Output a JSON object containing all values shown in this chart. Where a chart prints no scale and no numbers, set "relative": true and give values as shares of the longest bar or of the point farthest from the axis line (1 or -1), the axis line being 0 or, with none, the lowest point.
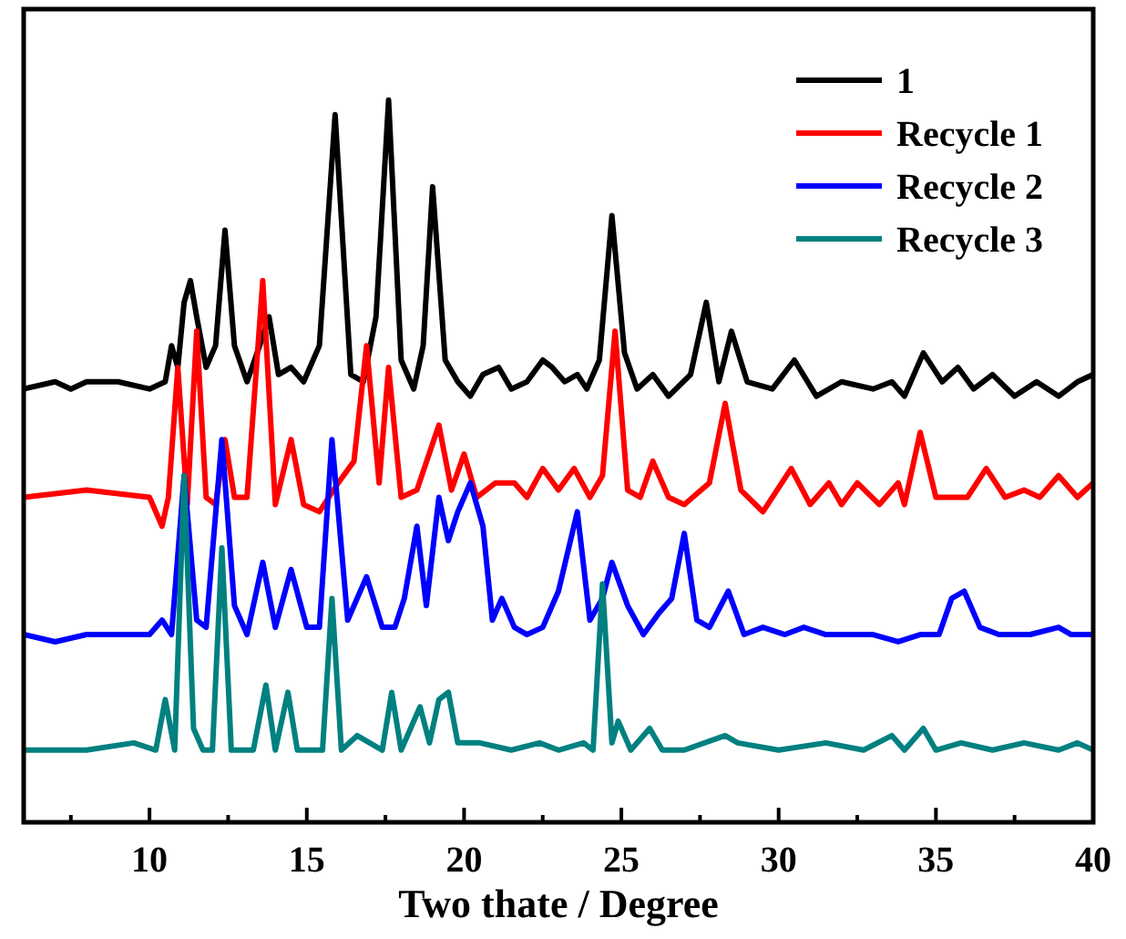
{
  "chart_data": {
    "type": "line",
    "relative": true,
    "xlabel": "Two thate / Degree",
    "xlim": [
      6,
      40
    ],
    "xticks": [
      {
        "value": 7.5,
        "label": null
      },
      10,
      {
        "value": 12.5,
        "label": null
      },
      15,
      {
        "value": 17.5,
        "label": null
      },
      20,
      {
        "value": 22.5,
        "label": null
      },
      25,
      {
        "value": 27.5,
        "label": null
      },
      30,
      {
        "value": 32.5,
        "label": null
      },
      35,
      {
        "value": 37.5,
        "label": null
      },
      40
    ],
    "tick_labels": "x",
    "legend": "top right",
    "line_style": "solid",
    "series": [
      {
        "name": "1",
        "color": "#000000",
        "x": [
          6,
          7,
          7.5,
          8,
          9,
          10,
          10.5,
          10.7,
          10.9,
          11.1,
          11.3,
          11.5,
          11.8,
          12.1,
          12.4,
          12.7,
          13.1,
          13.5,
          13.8,
          14.1,
          14.5,
          14.9,
          15.4,
          15.9,
          16.4,
          16.8,
          17.2,
          17.6,
          18.0,
          18.4,
          18.7,
          19.0,
          19.4,
          19.8,
          20.2,
          20.6,
          21.1,
          21.5,
          22.0,
          22.5,
          22.8,
          23.2,
          23.6,
          23.9,
          24.3,
          24.7,
          25.1,
          25.5,
          26.0,
          26.5,
          27.2,
          27.7,
          28.1,
          28.5,
          29.0,
          29.8,
          30.5,
          31.2,
          32.0,
          33.0,
          33.6,
          34.0,
          34.6,
          35.2,
          35.7,
          36.2,
          36.8,
          37.5,
          38.2,
          38.9,
          39.5,
          40
        ],
        "values": [
          0.6,
          0.61,
          0.6,
          0.61,
          0.61,
          0.6,
          0.61,
          0.66,
          0.63,
          0.72,
          0.75,
          0.7,
          0.63,
          0.66,
          0.82,
          0.66,
          0.61,
          0.66,
          0.7,
          0.62,
          0.63,
          0.61,
          0.66,
          0.98,
          0.62,
          0.61,
          0.7,
          1.0,
          0.64,
          0.6,
          0.66,
          0.88,
          0.64,
          0.61,
          0.59,
          0.62,
          0.63,
          0.6,
          0.61,
          0.64,
          0.63,
          0.61,
          0.62,
          0.6,
          0.64,
          0.84,
          0.65,
          0.6,
          0.62,
          0.59,
          0.62,
          0.72,
          0.61,
          0.68,
          0.61,
          0.6,
          0.64,
          0.59,
          0.61,
          0.6,
          0.61,
          0.59,
          0.65,
          0.61,
          0.63,
          0.6,
          0.62,
          0.59,
          0.61,
          0.59,
          0.61,
          0.62
        ]
      },
      {
        "name": "Recycle 1",
        "color": "#ff0000",
        "x": [
          6,
          8,
          10,
          10.4,
          10.6,
          10.9,
          11.2,
          11.5,
          11.8,
          12.1,
          12.4,
          12.7,
          13.1,
          13.6,
          14.0,
          14.5,
          14.9,
          15.4,
          16.0,
          16.5,
          16.9,
          17.3,
          17.6,
          18.0,
          18.5,
          19.2,
          19.6,
          20.0,
          20.4,
          21.0,
          21.6,
          22.0,
          22.5,
          23.0,
          23.5,
          24.0,
          24.4,
          24.8,
          25.2,
          25.6,
          26.0,
          26.5,
          27.0,
          27.8,
          28.3,
          28.8,
          29.5,
          30.4,
          31.0,
          31.6,
          32.0,
          32.5,
          33.2,
          33.8,
          34.0,
          34.5,
          35.0,
          35.5,
          36.0,
          36.6,
          37.2,
          37.8,
          38.3,
          38.9,
          39.5,
          40
        ],
        "values": [
          0.45,
          0.46,
          0.45,
          0.41,
          0.45,
          0.63,
          0.44,
          0.68,
          0.45,
          0.44,
          0.53,
          0.45,
          0.45,
          0.75,
          0.44,
          0.53,
          0.44,
          0.43,
          0.47,
          0.5,
          0.66,
          0.47,
          0.63,
          0.45,
          0.46,
          0.55,
          0.46,
          0.51,
          0.45,
          0.47,
          0.47,
          0.45,
          0.49,
          0.46,
          0.49,
          0.45,
          0.48,
          0.68,
          0.46,
          0.45,
          0.5,
          0.45,
          0.44,
          0.47,
          0.58,
          0.46,
          0.43,
          0.49,
          0.44,
          0.47,
          0.44,
          0.47,
          0.44,
          0.47,
          0.44,
          0.54,
          0.45,
          0.45,
          0.45,
          0.49,
          0.45,
          0.46,
          0.45,
          0.48,
          0.45,
          0.47
        ]
      },
      {
        "name": "Recycle 2",
        "color": "#0000ff",
        "x": [
          6,
          7,
          8,
          9,
          10,
          10.4,
          10.7,
          11.1,
          11.5,
          11.8,
          12.3,
          12.7,
          13.1,
          13.6,
          14.0,
          14.5,
          15.0,
          15.4,
          15.8,
          16.3,
          16.9,
          17.4,
          17.8,
          18.1,
          18.5,
          18.8,
          19.2,
          19.5,
          19.8,
          20.2,
          20.6,
          20.9,
          21.2,
          21.6,
          22.0,
          22.5,
          23.0,
          23.6,
          24.0,
          24.4,
          24.7,
          25.2,
          25.7,
          26.2,
          26.6,
          27.0,
          27.4,
          27.8,
          28.4,
          28.9,
          29.5,
          30.2,
          30.8,
          31.5,
          32.2,
          33.0,
          33.8,
          34.5,
          35.1,
          35.5,
          35.9,
          36.4,
          37.0,
          38.0,
          38.9,
          39.3,
          40
        ],
        "values": [
          0.26,
          0.25,
          0.26,
          0.26,
          0.26,
          0.28,
          0.26,
          0.48,
          0.28,
          0.27,
          0.53,
          0.3,
          0.26,
          0.36,
          0.27,
          0.35,
          0.27,
          0.27,
          0.53,
          0.28,
          0.34,
          0.27,
          0.27,
          0.31,
          0.41,
          0.3,
          0.45,
          0.39,
          0.43,
          0.47,
          0.41,
          0.28,
          0.31,
          0.27,
          0.26,
          0.27,
          0.32,
          0.43,
          0.28,
          0.31,
          0.36,
          0.3,
          0.26,
          0.29,
          0.31,
          0.4,
          0.28,
          0.27,
          0.32,
          0.26,
          0.27,
          0.26,
          0.27,
          0.26,
          0.26,
          0.26,
          0.25,
          0.26,
          0.26,
          0.31,
          0.32,
          0.27,
          0.26,
          0.26,
          0.27,
          0.26,
          0.26
        ]
      },
      {
        "name": "Recycle 3",
        "color": "#008080",
        "x": [
          6,
          8,
          9.5,
          10.2,
          10.5,
          10.8,
          11.1,
          11.4,
          11.7,
          12.0,
          12.3,
          12.6,
          13.3,
          13.7,
          14.0,
          14.4,
          14.7,
          15.5,
          15.8,
          16.1,
          16.6,
          17.4,
          17.7,
          18.0,
          18.3,
          18.6,
          18.9,
          19.2,
          19.5,
          19.8,
          20.5,
          21.5,
          22.4,
          23.0,
          23.8,
          24.1,
          24.4,
          24.7,
          24.9,
          25.3,
          25.9,
          26.3,
          27.0,
          28.3,
          28.7,
          30.0,
          31.5,
          32.7,
          33.6,
          34.0,
          34.6,
          35.0,
          35.8,
          36.8,
          37.8,
          38.9,
          39.5,
          40
        ],
        "values": [
          0.1,
          0.1,
          0.11,
          0.1,
          0.17,
          0.1,
          0.48,
          0.13,
          0.1,
          0.1,
          0.38,
          0.1,
          0.1,
          0.19,
          0.1,
          0.18,
          0.1,
          0.1,
          0.31,
          0.1,
          0.12,
          0.1,
          0.18,
          0.1,
          0.13,
          0.16,
          0.11,
          0.17,
          0.18,
          0.11,
          0.11,
          0.1,
          0.11,
          0.1,
          0.11,
          0.1,
          0.33,
          0.11,
          0.14,
          0.1,
          0.13,
          0.1,
          0.1,
          0.12,
          0.11,
          0.1,
          0.11,
          0.1,
          0.12,
          0.1,
          0.13,
          0.1,
          0.11,
          0.1,
          0.11,
          0.1,
          0.11,
          0.1
        ]
      }
    ]
  }
}
